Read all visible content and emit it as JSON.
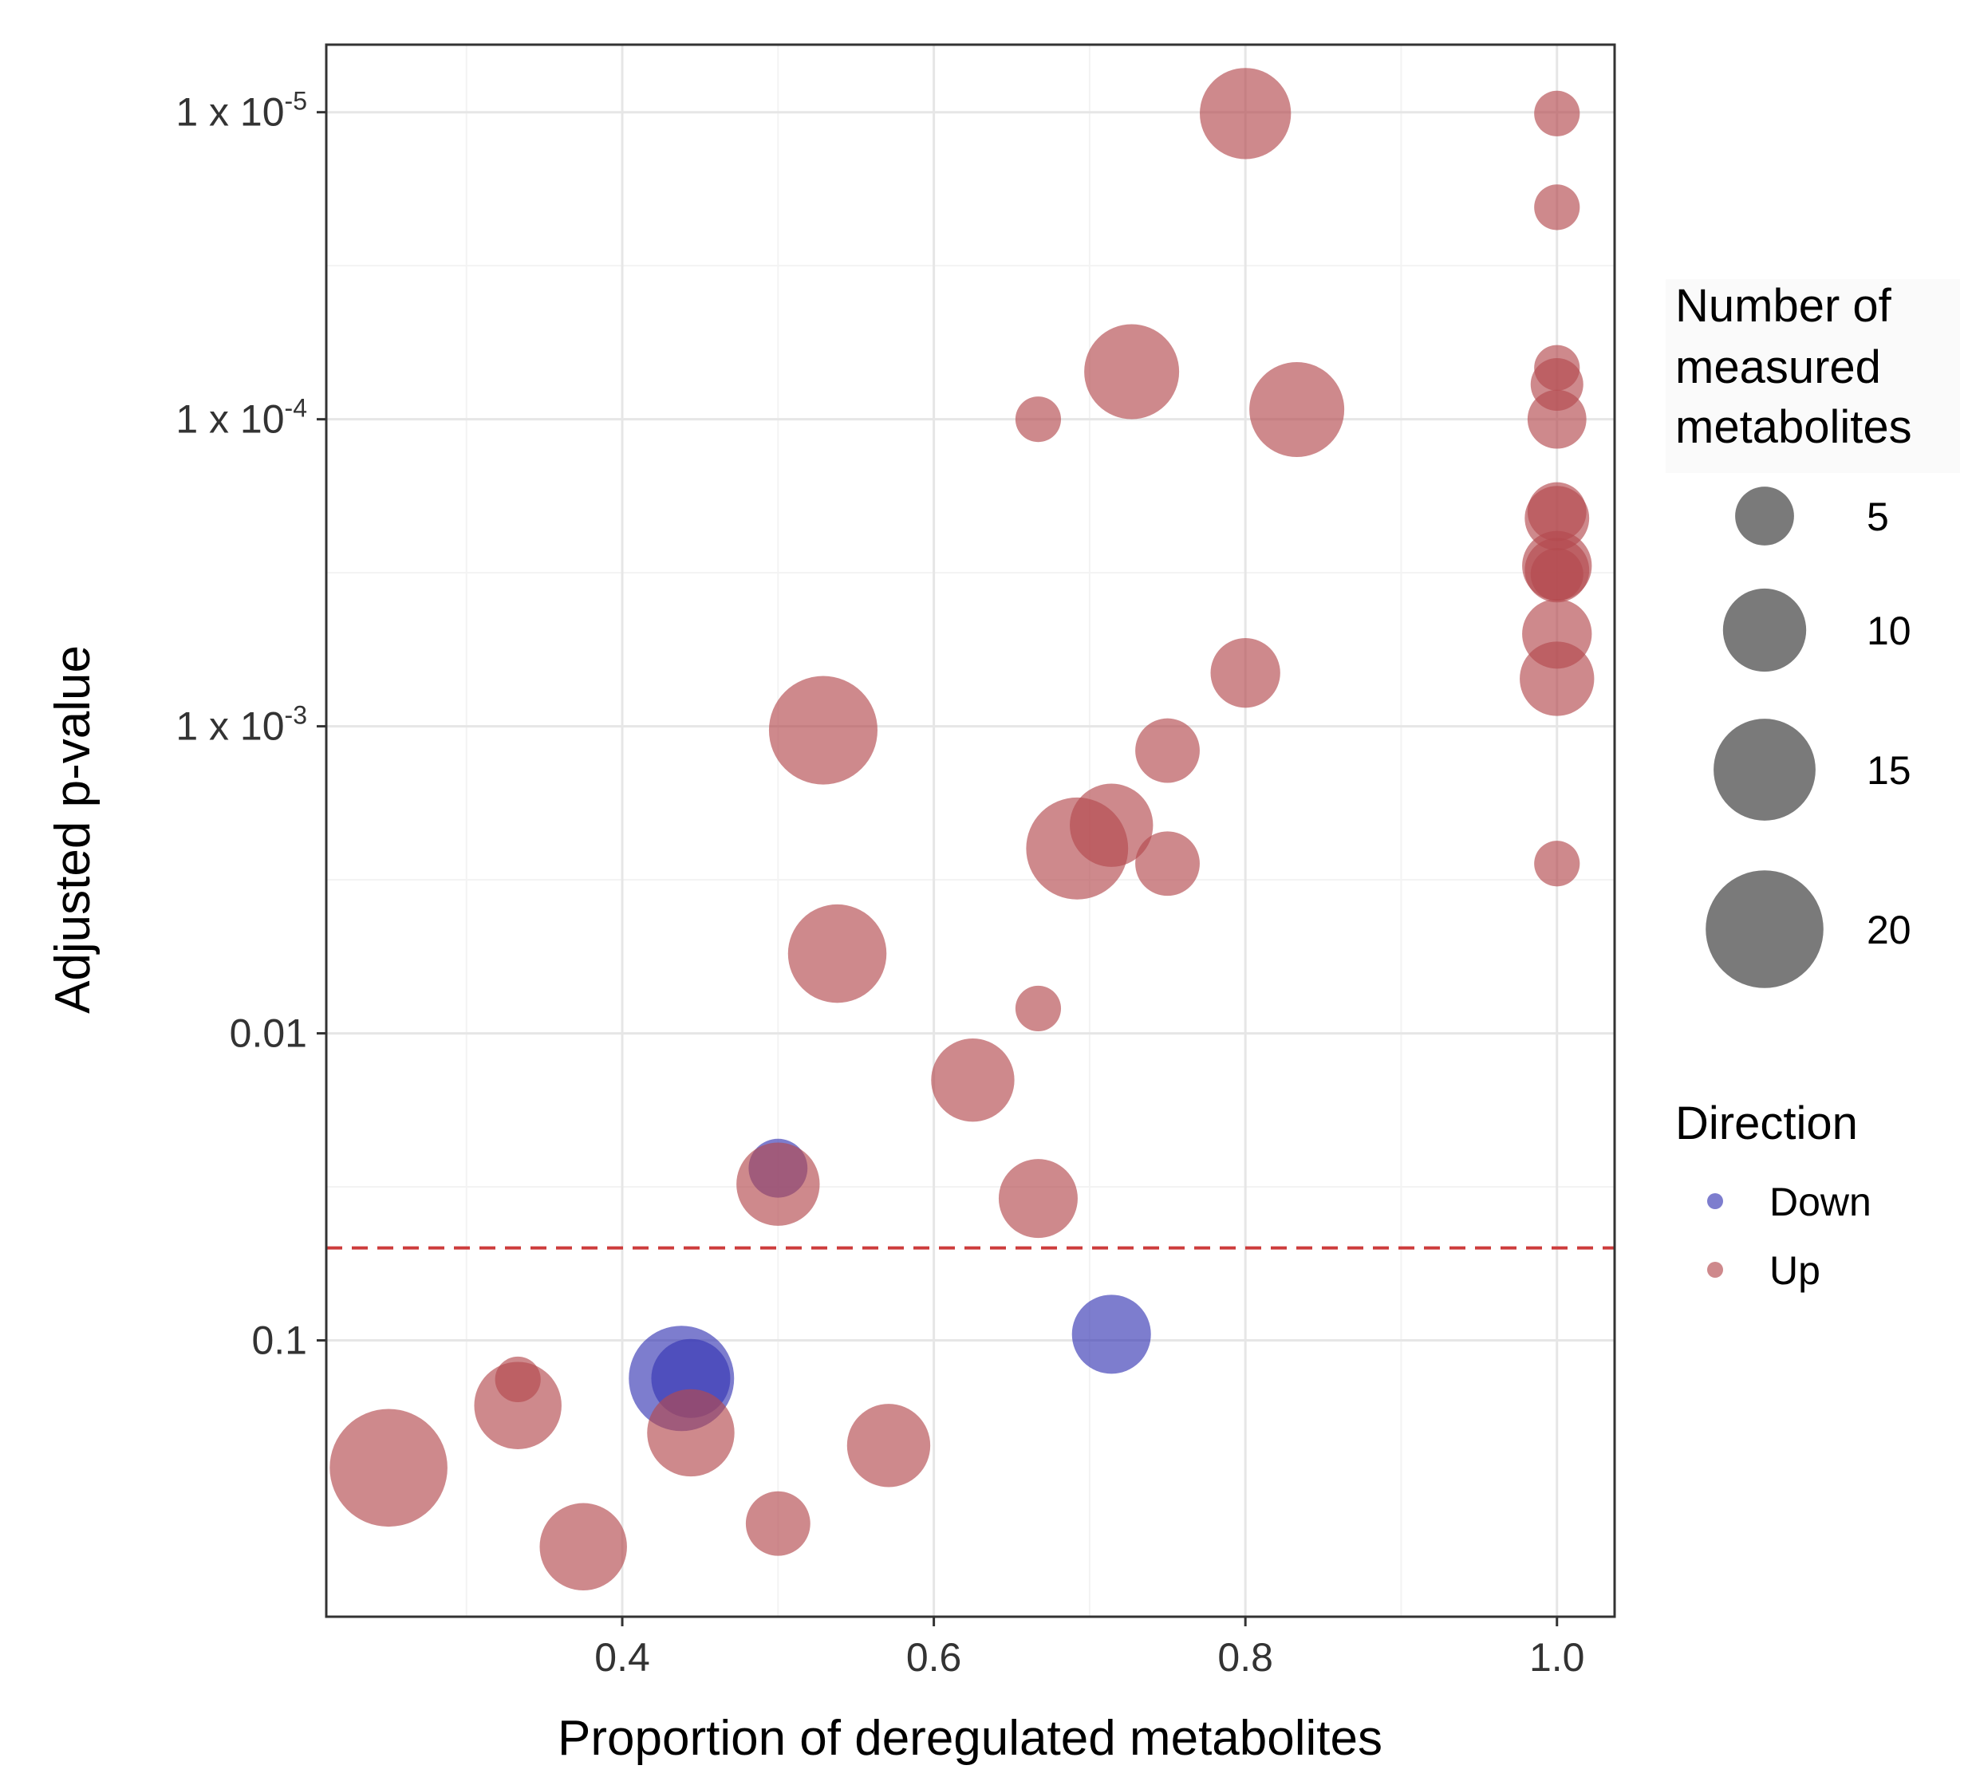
{
  "chart_data": {
    "type": "scatter",
    "title": "",
    "xlabel": "Proportion of deregulated metabolites",
    "ylabel": "Adjusted p-value",
    "xlim": [
      0.21,
      1.037
    ],
    "ylim_log10": [
      -5.22,
      -0.1
    ],
    "y_scale": "log10-reversed",
    "grid": true,
    "x_ticks": [
      {
        "value": 0.4,
        "label": "0.4"
      },
      {
        "value": 0.6,
        "label": "0.6"
      },
      {
        "value": 0.8,
        "label": "0.8"
      },
      {
        "value": 1.0,
        "label": "1.0"
      }
    ],
    "y_ticks": [
      {
        "value": 1e-05,
        "base": "1 x 10",
        "exponent": "-5"
      },
      {
        "value": 0.0001,
        "base": "1 x 10",
        "exponent": "-4"
      },
      {
        "value": 0.001,
        "base": "1 x 10",
        "exponent": "-3"
      },
      {
        "value": 0.01,
        "base": "0.01",
        "exponent": ""
      },
      {
        "value": 0.1,
        "base": "0.1",
        "exponent": ""
      }
    ],
    "significance_threshold": 0.05,
    "colors": {
      "Up": "#b44a4e",
      "Down": "#3737b4",
      "threshold": "#cd3c3c",
      "legend_size": "#595959"
    },
    "legend_size": {
      "title_lines": [
        "Number of",
        "measured",
        "metabolites"
      ],
      "values": [
        5,
        10,
        15,
        20
      ]
    },
    "legend_color": {
      "title": "Direction",
      "entries": [
        "Down",
        "Up"
      ]
    },
    "points": [
      {
        "x": 0.8,
        "p": 1.01e-05,
        "n": 12,
        "direction": "Up"
      },
      {
        "x": 1.0,
        "p": 1.01e-05,
        "n": 3,
        "direction": "Up"
      },
      {
        "x": 1.0,
        "p": 2.04e-05,
        "n": 3,
        "direction": "Up"
      },
      {
        "x": 0.727,
        "p": 7e-05,
        "n": 13,
        "direction": "Up"
      },
      {
        "x": 0.833,
        "p": 9.3e-05,
        "n": 13,
        "direction": "Up"
      },
      {
        "x": 0.667,
        "p": 0.0001,
        "n": 3,
        "direction": "Up"
      },
      {
        "x": 1.0,
        "p": 6.8e-05,
        "n": 3,
        "direction": "Up"
      },
      {
        "x": 1.0,
        "p": 7.7e-05,
        "n": 4,
        "direction": "Up"
      },
      {
        "x": 1.0,
        "p": 0.0001,
        "n": 5,
        "direction": "Up"
      },
      {
        "x": 1.0,
        "p": 0.0002,
        "n": 5,
        "direction": "Up"
      },
      {
        "x": 1.0,
        "p": 0.00021,
        "n": 6,
        "direction": "Up"
      },
      {
        "x": 1.0,
        "p": 0.0003,
        "n": 7,
        "direction": "Up"
      },
      {
        "x": 1.0,
        "p": 0.00031,
        "n": 6,
        "direction": "Up"
      },
      {
        "x": 1.0,
        "p": 0.00032,
        "n": 4,
        "direction": "Up"
      },
      {
        "x": 1.0,
        "p": 0.0005,
        "n": 7,
        "direction": "Up"
      },
      {
        "x": 1.0,
        "p": 0.0007,
        "n": 8,
        "direction": "Up"
      },
      {
        "x": 0.8,
        "p": 0.00067,
        "n": 7,
        "direction": "Up"
      },
      {
        "x": 0.529,
        "p": 0.00103,
        "n": 17,
        "direction": "Up"
      },
      {
        "x": 0.75,
        "p": 0.0012,
        "n": 6,
        "direction": "Up"
      },
      {
        "x": 0.714,
        "p": 0.0021,
        "n": 10,
        "direction": "Up"
      },
      {
        "x": 0.692,
        "p": 0.0025,
        "n": 15,
        "direction": "Up"
      },
      {
        "x": 0.75,
        "p": 0.0028,
        "n": 6,
        "direction": "Up"
      },
      {
        "x": 1.0,
        "p": 0.0028,
        "n": 3,
        "direction": "Up"
      },
      {
        "x": 0.538,
        "p": 0.0055,
        "n": 14,
        "direction": "Up"
      },
      {
        "x": 0.667,
        "p": 0.0083,
        "n": 3,
        "direction": "Up"
      },
      {
        "x": 0.625,
        "p": 0.0142,
        "n": 10,
        "direction": "Up"
      },
      {
        "x": 0.5,
        "p": 0.0275,
        "n": 5,
        "direction": "Down"
      },
      {
        "x": 0.5,
        "p": 0.031,
        "n": 10,
        "direction": "Up"
      },
      {
        "x": 0.667,
        "p": 0.0345,
        "n": 9,
        "direction": "Up"
      },
      {
        "x": 0.714,
        "p": 0.0955,
        "n": 9,
        "direction": "Down"
      },
      {
        "x": 0.438,
        "p": 0.133,
        "n": 16,
        "direction": "Down"
      },
      {
        "x": 0.444,
        "p": 0.133,
        "n": 9,
        "direction": "Down"
      },
      {
        "x": 0.333,
        "p": 0.134,
        "n": 3,
        "direction": "Up"
      },
      {
        "x": 0.333,
        "p": 0.163,
        "n": 11,
        "direction": "Up"
      },
      {
        "x": 0.444,
        "p": 0.2,
        "n": 11,
        "direction": "Up"
      },
      {
        "x": 0.571,
        "p": 0.22,
        "n": 10,
        "direction": "Up"
      },
      {
        "x": 0.25,
        "p": 0.26,
        "n": 20,
        "direction": "Up"
      },
      {
        "x": 0.5,
        "p": 0.395,
        "n": 6,
        "direction": "Up"
      },
      {
        "x": 0.375,
        "p": 0.47,
        "n": 11,
        "direction": "Up"
      }
    ]
  }
}
